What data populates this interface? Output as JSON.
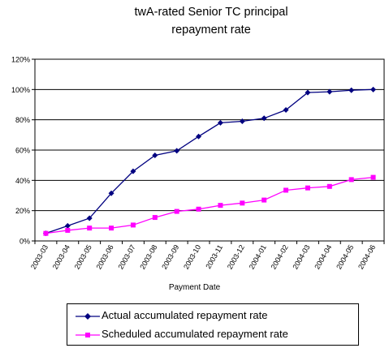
{
  "chart_data": {
    "type": "line",
    "title_lines": [
      "twA-rated Senior TC principal",
      "repayment rate"
    ],
    "xlabel": "Payment Date",
    "ylabel": "",
    "categories": [
      "2003-03",
      "2003-04",
      "2003-05",
      "2003-06",
      "2003-07",
      "2003-08",
      "2003-09",
      "2003-10",
      "2003-11",
      "2003-12",
      "2004-01",
      "2004-02",
      "2004-03",
      "2004-04",
      "2004-05",
      "2004-06"
    ],
    "ylim": [
      0,
      120
    ],
    "yticks": [
      0,
      20,
      40,
      60,
      80,
      100,
      120
    ],
    "ytick_labels": [
      "0%",
      "20%",
      "40%",
      "60%",
      "80%",
      "100%",
      "120%"
    ],
    "grid": true,
    "legend_position": "bottom",
    "series": [
      {
        "name": "Actual accumulated repayment rate",
        "color": "#000080",
        "marker": "diamond",
        "values": [
          5,
          10,
          15,
          31.5,
          46,
          56.5,
          59.5,
          69,
          78,
          79,
          81,
          86.5,
          98,
          98.5,
          99.5,
          100
        ]
      },
      {
        "name": "Scheduled accumulated repayment rate",
        "color": "#ff00ff",
        "marker": "square",
        "values": [
          5,
          7,
          8.5,
          8.5,
          10.5,
          15.5,
          19.5,
          21,
          23.5,
          25,
          27,
          33.5,
          35,
          36,
          40.5,
          42
        ]
      }
    ]
  }
}
